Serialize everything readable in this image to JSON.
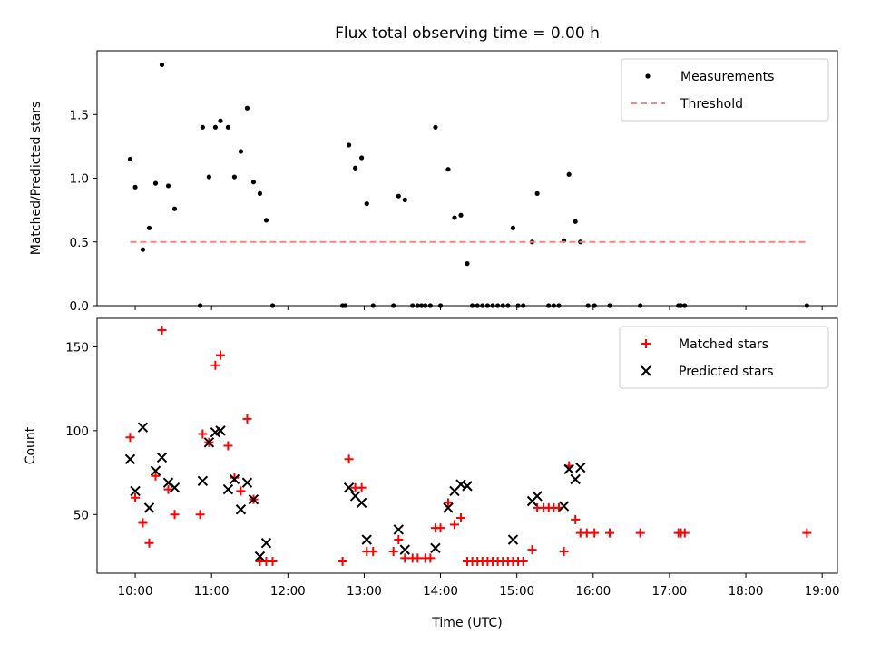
{
  "chart_data": [
    {
      "type": "scatter",
      "title": "Flux total observing time = 0.00 h",
      "xlabel": "",
      "ylabel": "Matched/Predicted stars",
      "xlim": [
        "09:30",
        "19:12"
      ],
      "ylim": [
        0,
        2.0
      ],
      "yticks": [
        0.0,
        0.5,
        1.0,
        1.5
      ],
      "ytick_labels": [
        "0.0",
        "0.5",
        "1.0",
        "1.5"
      ],
      "xticks": [
        "10:00",
        "11:00",
        "12:00",
        "13:00",
        "14:00",
        "15:00",
        "16:00",
        "17:00",
        "18:00",
        "19:00"
      ],
      "xtick_labels_shown": false,
      "grid": false,
      "legend": "upper-right",
      "series": [
        {
          "name": "Measurements",
          "kind": "scatter",
          "marker": "dot",
          "color": "#000000",
          "points": [
            [
              "09:56",
              1.15
            ],
            [
              "10:00",
              0.93
            ],
            [
              "10:06",
              0.44
            ],
            [
              "10:11",
              0.61
            ],
            [
              "10:16",
              0.96
            ],
            [
              "10:21",
              1.89
            ],
            [
              "10:26",
              0.94
            ],
            [
              "10:31",
              0.76
            ],
            [
              "10:51",
              0.0
            ],
            [
              "10:53",
              1.4
            ],
            [
              "10:58",
              1.01
            ],
            [
              "11:03",
              1.4
            ],
            [
              "11:07",
              1.45
            ],
            [
              "11:13",
              1.4
            ],
            [
              "11:18",
              1.01
            ],
            [
              "11:23",
              1.21
            ],
            [
              "11:28",
              1.55
            ],
            [
              "11:33",
              0.97
            ],
            [
              "11:38",
              0.88
            ],
            [
              "11:43",
              0.67
            ],
            [
              "11:48",
              0.0
            ],
            [
              "12:43",
              0.0
            ],
            [
              "12:45",
              0.0
            ],
            [
              "12:48",
              1.26
            ],
            [
              "12:53",
              1.08
            ],
            [
              "12:58",
              1.16
            ],
            [
              "13:02",
              0.8
            ],
            [
              "13:07",
              0.0
            ],
            [
              "13:23",
              0.0
            ],
            [
              "13:27",
              0.86
            ],
            [
              "13:32",
              0.83
            ],
            [
              "13:38",
              0.0
            ],
            [
              "13:42",
              0.0
            ],
            [
              "13:45",
              0.0
            ],
            [
              "13:48",
              0.0
            ],
            [
              "13:52",
              0.0
            ],
            [
              "13:56",
              1.4
            ],
            [
              "14:00",
              0.0
            ],
            [
              "14:06",
              1.07
            ],
            [
              "14:11",
              0.69
            ],
            [
              "14:16",
              0.71
            ],
            [
              "14:21",
              0.33
            ],
            [
              "14:25",
              0.0
            ],
            [
              "14:29",
              0.0
            ],
            [
              "14:33",
              0.0
            ],
            [
              "14:37",
              0.0
            ],
            [
              "14:41",
              0.0
            ],
            [
              "14:45",
              0.0
            ],
            [
              "14:49",
              0.0
            ],
            [
              "14:53",
              0.0
            ],
            [
              "14:57",
              0.61
            ],
            [
              "15:01",
              0.0
            ],
            [
              "15:05",
              0.0
            ],
            [
              "15:12",
              0.5
            ],
            [
              "15:16",
              0.88
            ],
            [
              "15:25",
              0.0
            ],
            [
              "15:29",
              0.0
            ],
            [
              "15:33",
              0.0
            ],
            [
              "15:37",
              0.51
            ],
            [
              "15:41",
              1.03
            ],
            [
              "15:46",
              0.66
            ],
            [
              "15:50",
              0.5
            ],
            [
              "15:56",
              0.0
            ],
            [
              "16:01",
              0.0
            ],
            [
              "16:13",
              0.0
            ],
            [
              "16:37",
              0.0
            ],
            [
              "17:07",
              0.0
            ],
            [
              "17:09",
              0.0
            ],
            [
              "17:12",
              0.0
            ],
            [
              "18:48",
              0.0
            ]
          ]
        },
        {
          "name": "Threshold",
          "kind": "line",
          "style": "dashed",
          "color": "#ff8080",
          "points": [
            [
              "09:56",
              0.5
            ],
            [
              "18:48",
              0.5
            ]
          ]
        }
      ]
    },
    {
      "type": "scatter",
      "title": "",
      "xlabel": "Time (UTC)",
      "ylabel": "Count",
      "xlim": [
        "09:30",
        "19:12"
      ],
      "ylim": [
        15,
        167
      ],
      "yticks": [
        50,
        100,
        150
      ],
      "ytick_labels": [
        "50",
        "100",
        "150"
      ],
      "xticks": [
        "10:00",
        "11:00",
        "12:00",
        "13:00",
        "14:00",
        "15:00",
        "16:00",
        "17:00",
        "18:00",
        "19:00"
      ],
      "xtick_labels": [
        "10:00",
        "11:00",
        "12:00",
        "13:00",
        "14:00",
        "15:00",
        "16:00",
        "17:00",
        "18:00",
        "19:00"
      ],
      "grid": false,
      "legend": "upper-right",
      "series": [
        {
          "name": "Matched stars",
          "kind": "scatter",
          "marker": "plus",
          "color": "#ff0000",
          "points": [
            [
              "09:56",
              96
            ],
            [
              "10:00",
              60
            ],
            [
              "10:06",
              45
            ],
            [
              "10:11",
              33
            ],
            [
              "10:16",
              73
            ],
            [
              "10:21",
              160
            ],
            [
              "10:26",
              65
            ],
            [
              "10:31",
              50
            ],
            [
              "10:51",
              50
            ],
            [
              "10:53",
              98
            ],
            [
              "10:58",
              93
            ],
            [
              "11:03",
              139
            ],
            [
              "11:07",
              145
            ],
            [
              "11:13",
              91
            ],
            [
              "11:18",
              72
            ],
            [
              "11:23",
              64
            ],
            [
              "11:28",
              107
            ],
            [
              "11:33",
              59
            ],
            [
              "11:38",
              22
            ],
            [
              "11:43",
              22
            ],
            [
              "11:48",
              22
            ],
            [
              "12:43",
              22
            ],
            [
              "12:48",
              83
            ],
            [
              "12:53",
              66
            ],
            [
              "12:58",
              66
            ],
            [
              "13:02",
              28
            ],
            [
              "13:07",
              28
            ],
            [
              "13:23",
              28
            ],
            [
              "13:27",
              35
            ],
            [
              "13:32",
              24
            ],
            [
              "13:38",
              24
            ],
            [
              "13:42",
              24
            ],
            [
              "13:48",
              24
            ],
            [
              "13:52",
              24
            ],
            [
              "13:56",
              42
            ],
            [
              "14:00",
              42
            ],
            [
              "14:06",
              57
            ],
            [
              "14:11",
              44
            ],
            [
              "14:16",
              48
            ],
            [
              "14:21",
              22
            ],
            [
              "14:25",
              22
            ],
            [
              "14:29",
              22
            ],
            [
              "14:33",
              22
            ],
            [
              "14:37",
              22
            ],
            [
              "14:41",
              22
            ],
            [
              "14:45",
              22
            ],
            [
              "14:49",
              22
            ],
            [
              "14:53",
              22
            ],
            [
              "14:57",
              22
            ],
            [
              "15:01",
              22
            ],
            [
              "15:05",
              22
            ],
            [
              "15:12",
              29
            ],
            [
              "15:16",
              54
            ],
            [
              "15:21",
              54
            ],
            [
              "15:25",
              54
            ],
            [
              "15:29",
              54
            ],
            [
              "15:33",
              54
            ],
            [
              "15:37",
              28
            ],
            [
              "15:41",
              79
            ],
            [
              "15:46",
              47
            ],
            [
              "15:50",
              39
            ],
            [
              "15:55",
              39
            ],
            [
              "16:01",
              39
            ],
            [
              "16:13",
              39
            ],
            [
              "16:37",
              39
            ],
            [
              "17:07",
              39
            ],
            [
              "17:09",
              39
            ],
            [
              "17:12",
              39
            ],
            [
              "18:48",
              39
            ]
          ]
        },
        {
          "name": "Predicted stars",
          "kind": "scatter",
          "marker": "x",
          "color": "#000000",
          "points": [
            [
              "09:56",
              83
            ],
            [
              "10:00",
              64
            ],
            [
              "10:06",
              102
            ],
            [
              "10:11",
              54
            ],
            [
              "10:16",
              76
            ],
            [
              "10:21",
              84
            ],
            [
              "10:26",
              69
            ],
            [
              "10:31",
              66
            ],
            [
              "10:53",
              70
            ],
            [
              "10:58",
              93
            ],
            [
              "11:03",
              99
            ],
            [
              "11:07",
              100
            ],
            [
              "11:13",
              65
            ],
            [
              "11:18",
              71
            ],
            [
              "11:23",
              53
            ],
            [
              "11:28",
              69
            ],
            [
              "11:33",
              59
            ],
            [
              "11:38",
              25
            ],
            [
              "11:43",
              33
            ],
            [
              "12:48",
              66
            ],
            [
              "12:53",
              61
            ],
            [
              "12:58",
              57
            ],
            [
              "13:02",
              35
            ],
            [
              "13:27",
              41
            ],
            [
              "13:32",
              29
            ],
            [
              "13:56",
              30
            ],
            [
              "14:06",
              54
            ],
            [
              "14:11",
              64
            ],
            [
              "14:16",
              68
            ],
            [
              "14:21",
              67
            ],
            [
              "14:57",
              35
            ],
            [
              "15:12",
              58
            ],
            [
              "15:16",
              61
            ],
            [
              "15:37",
              55
            ],
            [
              "15:41",
              77
            ],
            [
              "15:46",
              71
            ],
            [
              "15:50",
              78
            ]
          ]
        }
      ]
    }
  ]
}
